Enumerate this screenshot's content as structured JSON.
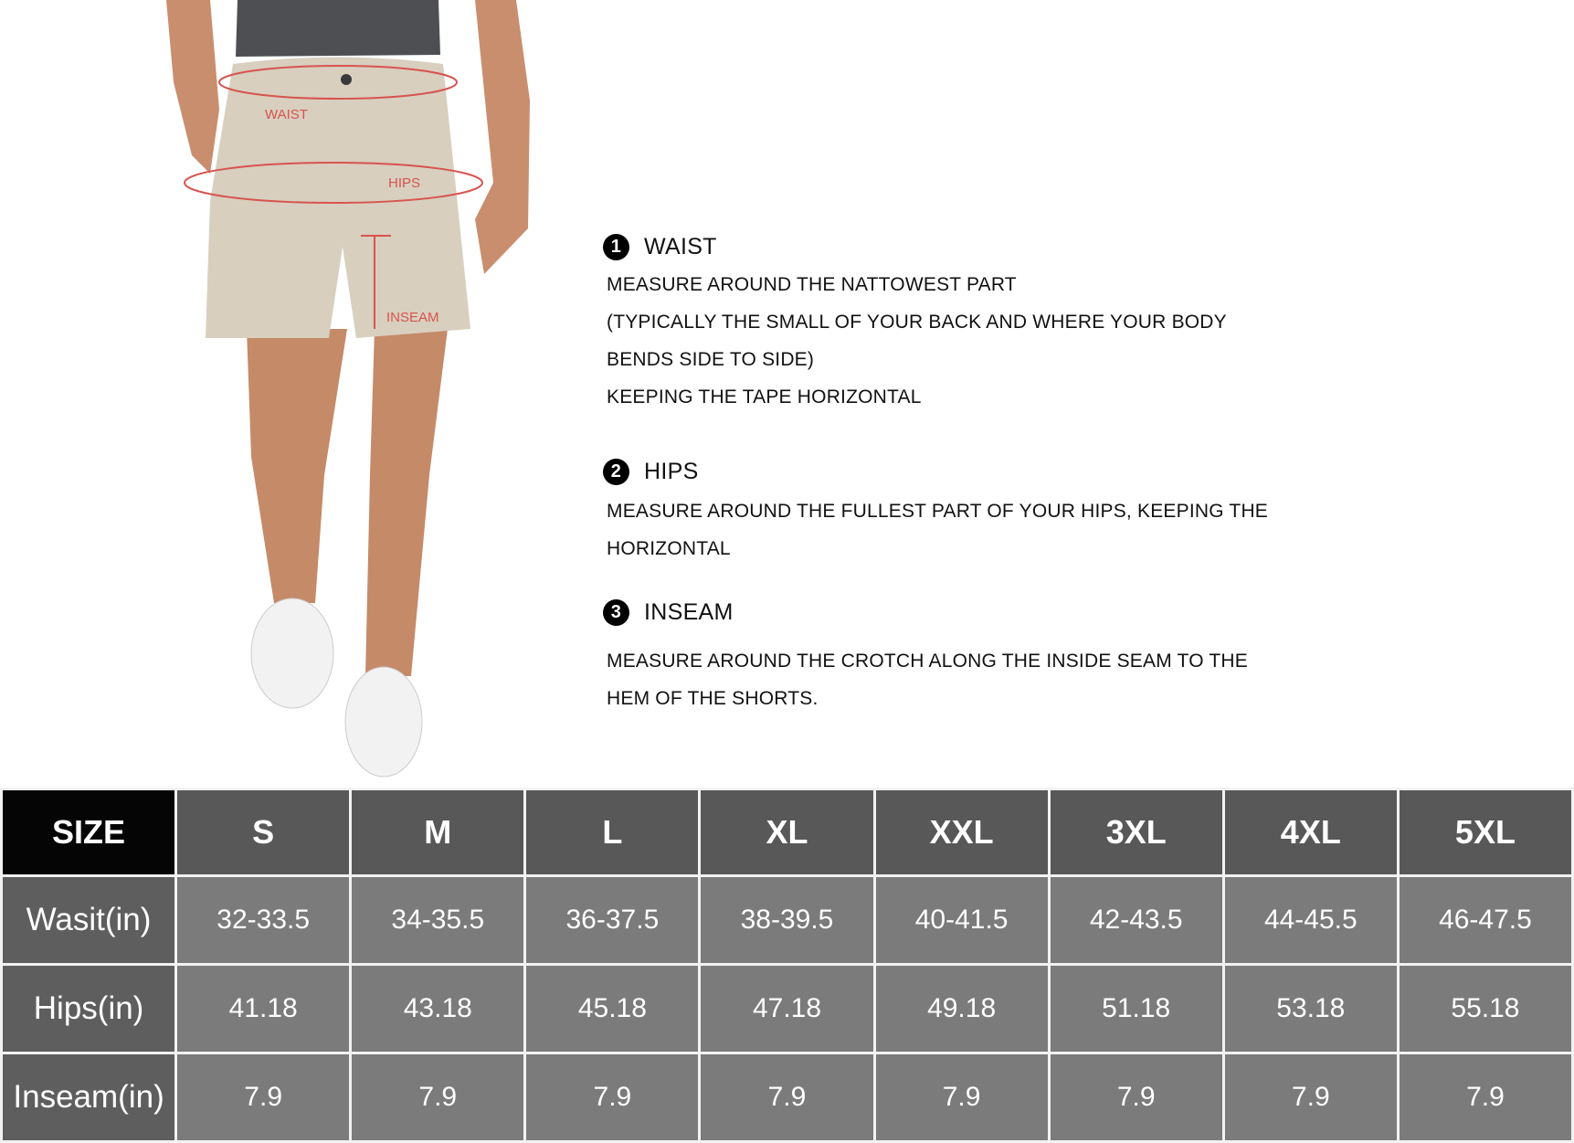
{
  "figure": {
    "labels": {
      "waist": "WAIST",
      "hips": "HIPS",
      "inseam": "INSEAM"
    },
    "label_color": "#d9534f"
  },
  "guide": [
    {
      "number": "1",
      "title": "WAIST",
      "lines": [
        "MEASURE AROUND THE NATTOWEST PART",
        "(TYPICALLY THE SMALL OF YOUR BACK AND WHERE YOUR BODY",
        "BENDS SIDE TO SIDE)",
        "KEEPING THE TAPE HORIZONTAL"
      ]
    },
    {
      "number": "2",
      "title": "HIPS",
      "lines": [
        "MEASURE AROUND THE FULLEST PART OF YOUR HIPS, KEEPING THE",
        "HORIZONTAL"
      ]
    },
    {
      "number": "3",
      "title": "INSEAM",
      "lines": [
        "MEASURE AROUND THE CROTCH ALONG THE INSIDE SEAM TO THE",
        "HEM OF THE SHORTS."
      ]
    }
  ],
  "table": {
    "header": [
      "SIZE",
      "S",
      "M",
      "L",
      "XL",
      "XXL",
      "3XL",
      "4XL",
      "5XL"
    ],
    "rows": [
      {
        "label": "Wasit(in)",
        "values": [
          "32-33.5",
          "34-35.5",
          "36-37.5",
          "38-39.5",
          "40-41.5",
          "42-43.5",
          "44-45.5",
          "46-47.5"
        ]
      },
      {
        "label": "Hips(in)",
        "values": [
          "41.18",
          "43.18",
          "45.18",
          "47.18",
          "49.18",
          "51.18",
          "53.18",
          "55.18"
        ]
      },
      {
        "label": "Inseam(in)",
        "values": [
          "7.9",
          "7.9",
          "7.9",
          "7.9",
          "7.9",
          "7.9",
          "7.9",
          "7.9"
        ]
      }
    ]
  }
}
